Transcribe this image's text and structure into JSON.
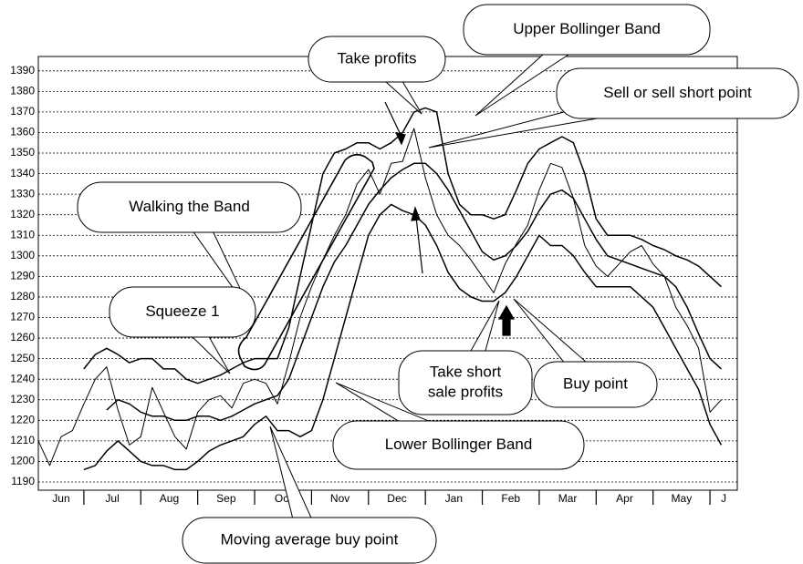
{
  "chart_data": {
    "type": "line",
    "x": [
      0.2,
      0.4,
      0.6,
      0.8,
      1.0,
      1.2,
      1.4,
      1.6,
      1.8,
      2.0,
      2.2,
      2.4,
      2.6,
      2.8,
      3.0,
      3.2,
      3.4,
      3.6,
      3.8,
      4.0,
      4.2,
      4.4,
      4.6,
      4.8,
      5.0,
      5.2,
      5.4,
      5.6,
      5.8,
      6.0,
      6.2,
      6.4,
      6.6,
      6.8,
      7.0,
      7.2,
      7.4,
      7.6,
      7.8,
      8.0,
      8.2,
      8.4,
      8.6,
      8.8,
      9.0,
      9.2,
      9.4,
      9.6,
      9.8,
      10.0,
      10.2,
      10.4,
      10.6,
      10.8,
      11.0,
      11.2,
      11.4,
      11.6,
      11.8,
      12.0,
      12.2
    ],
    "series": [
      {
        "color": "#000000",
        "width": 1,
        "values": [
          1210,
          1198,
          1212,
          1215,
          1228,
          1240,
          1246,
          1225,
          1208,
          1212,
          1236,
          1224,
          1212,
          1206,
          1224,
          1230,
          1232,
          1226,
          1238,
          1240,
          1238,
          1228,
          1248,
          1270,
          1285,
          1298,
          1310,
          1320,
          1335,
          1342,
          1330,
          1345,
          1346,
          1362,
          1338,
          1320,
          1310,
          1305,
          1298,
          1290,
          1282,
          1296,
          1306,
          1315,
          1332,
          1345,
          1343,
          1328,
          1305,
          1295,
          1290,
          1296,
          1302,
          1305,
          1296,
          1290,
          1275,
          1266,
          1255,
          1224,
          1230
        ]
      },
      {
        "color": "#000000",
        "width": 1.5,
        "values": [
          null,
          null,
          null,
          null,
          1245,
          1252,
          1255,
          1252,
          1248,
          1250,
          1250,
          1245,
          1245,
          1240,
          1238,
          1240,
          1242,
          1245,
          1248,
          1250,
          1250,
          1250,
          1265,
          1290,
          1315,
          1340,
          1350,
          1352,
          1355,
          1355,
          1352,
          1355,
          1360,
          1370,
          1372,
          1370,
          1340,
          1325,
          1320,
          1320,
          1318,
          1320,
          1332,
          1345,
          1352,
          1355,
          1358,
          1355,
          1340,
          1318,
          1310,
          1310,
          1310,
          1308,
          1305,
          1303,
          1300,
          1298,
          1295,
          1290,
          1285
        ]
      },
      {
        "color": "#000000",
        "width": 1.5,
        "values": [
          null,
          null,
          null,
          null,
          null,
          null,
          1225,
          1230,
          1228,
          1224,
          1222,
          1222,
          1220,
          1220,
          1222,
          1222,
          1220,
          1222,
          1225,
          1228,
          1230,
          1232,
          1240,
          1255,
          1270,
          1285,
          1297,
          1305,
          1315,
          1325,
          1332,
          1338,
          1342,
          1345,
          1345,
          1340,
          1332,
          1322,
          1312,
          1302,
          1298,
          1300,
          1305,
          1312,
          1322,
          1330,
          1332,
          1328,
          1318,
          1308,
          1300,
          1298,
          1296,
          1294,
          1292,
          1290,
          1285,
          1275,
          1262,
          1250,
          1245
        ]
      },
      {
        "color": "#000000",
        "width": 1.5,
        "values": [
          null,
          null,
          null,
          null,
          1196,
          1198,
          1205,
          1210,
          1205,
          1200,
          1198,
          1198,
          1196,
          1196,
          1200,
          1205,
          1208,
          1210,
          1212,
          1218,
          1222,
          1215,
          1215,
          1212,
          1215,
          1230,
          1250,
          1270,
          1290,
          1310,
          1320,
          1325,
          1322,
          1320,
          1315,
          1305,
          1292,
          1284,
          1280,
          1278,
          1278,
          1282,
          1290,
          1300,
          1310,
          1305,
          1305,
          1300,
          1292,
          1285,
          1285,
          1285,
          1285,
          1280,
          1275,
          1265,
          1255,
          1245,
          1235,
          1218,
          1208
        ]
      }
    ],
    "xlim": [
      0.2,
      12.48
    ],
    "xticks": [
      {
        "value": 0.6,
        "label": "Jun"
      },
      {
        "value": 1.5,
        "label": "Jul"
      },
      {
        "value": 2.5,
        "label": "Aug"
      },
      {
        "value": 3.5,
        "label": "Sep"
      },
      {
        "value": 4.5,
        "label": "Oct"
      },
      {
        "value": 5.5,
        "label": "Nov"
      },
      {
        "value": 6.5,
        "label": "Dec"
      },
      {
        "value": 7.5,
        "label": "Jan"
      },
      {
        "value": 8.5,
        "label": "Feb"
      },
      {
        "value": 9.5,
        "label": "Mar"
      },
      {
        "value": 10.5,
        "label": "Apr"
      },
      {
        "value": 11.5,
        "label": "May"
      },
      {
        "value": 12.24,
        "label": "J"
      }
    ],
    "x_dividers": [
      1,
      2,
      3,
      4,
      5,
      6,
      7,
      8,
      9,
      10,
      11,
      12
    ],
    "ylim": [
      1186,
      1397
    ],
    "yticks": [
      1190,
      1200,
      1210,
      1220,
      1230,
      1240,
      1250,
      1260,
      1270,
      1280,
      1290,
      1300,
      1310,
      1320,
      1330,
      1340,
      1350,
      1360,
      1370,
      1380,
      1390
    ],
    "grid": true,
    "annotations": [
      "Upper Bollinger Band",
      "Take profits",
      "Sell or sell short point",
      "Walking the Band",
      "Squeeze 1",
      [
        "Take short",
        "sale profits"
      ],
      "Buy point",
      "Lower Bollinger Band",
      "Moving average buy point"
    ]
  }
}
